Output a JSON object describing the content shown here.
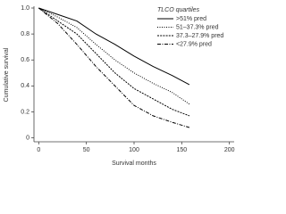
{
  "chart_data": {
    "type": "line",
    "x_label": "Survival months",
    "y_label": "Cumulative survival",
    "legend_title": "TLCO quartiles",
    "legend_position": "upper right",
    "x": [
      0,
      20,
      40,
      60,
      80,
      100,
      120,
      140,
      158
    ],
    "series": [
      {
        "name": ">51% pred",
        "color": "#000000",
        "values": [
          1.0,
          0.95,
          0.9,
          0.8,
          0.72,
          0.63,
          0.55,
          0.48,
          0.41
        ]
      },
      {
        "name": "51–37.3% pred",
        "color": "#000000",
        "values": [
          1.0,
          0.93,
          0.85,
          0.72,
          0.6,
          0.5,
          0.42,
          0.35,
          0.26
        ]
      },
      {
        "name": "37.3–27.9% pred",
        "color": "#000000",
        "values": [
          1.0,
          0.9,
          0.8,
          0.65,
          0.5,
          0.38,
          0.3,
          0.22,
          0.17
        ]
      },
      {
        "name": "<27.9% pred",
        "color": "#000000",
        "values": [
          1.0,
          0.88,
          0.72,
          0.55,
          0.4,
          0.25,
          0.17,
          0.12,
          0.08
        ]
      }
    ],
    "xlim": [
      -5,
      205
    ],
    "ylim": [
      -0.03,
      1.0
    ],
    "xticks": [
      0,
      50,
      100,
      150,
      200
    ],
    "yticks": [
      0,
      0.2,
      0.4,
      0.6,
      0.8,
      {
        "value": 1,
        "label": "1.0"
      }
    ]
  }
}
